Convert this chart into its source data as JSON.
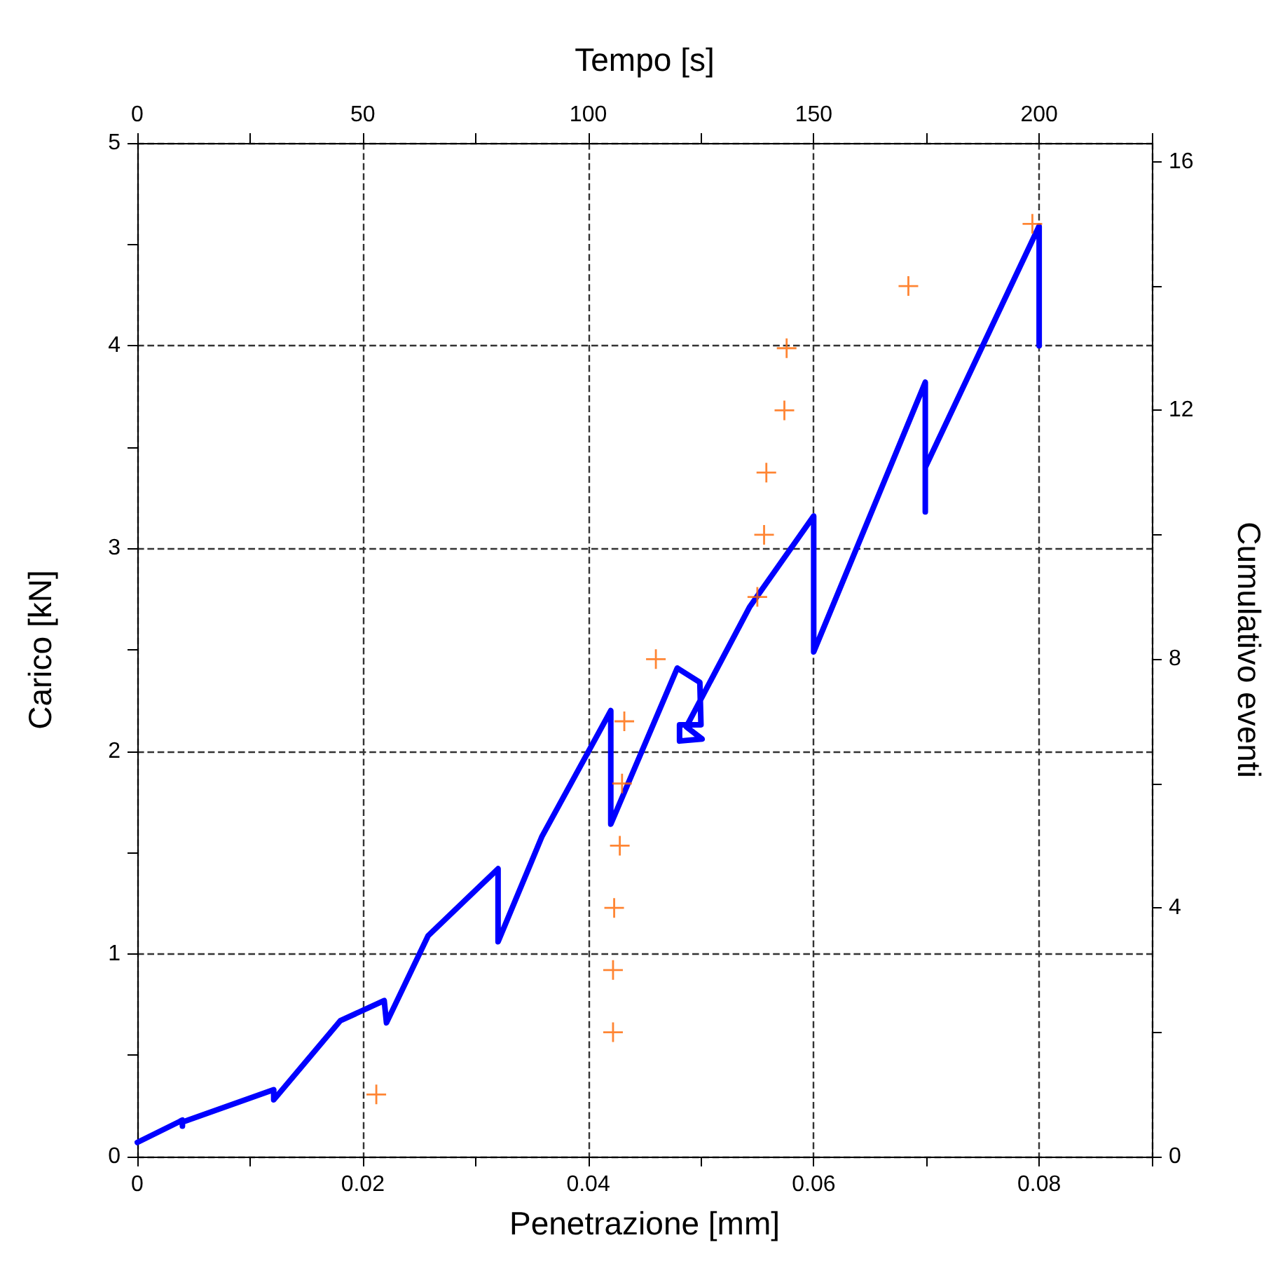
{
  "chart_data": {
    "type": "line",
    "xlabel": "Penetrazione [mm]",
    "ylabel": "Carico [kN]",
    "y2label": "Cumulativo eventi",
    "x2label": "Tempo [s]",
    "xlim": [
      0,
      0.09
    ],
    "xticks": [
      0,
      {
        "value": 0.01,
        "label": null
      },
      0.02,
      {
        "value": 0.03,
        "label": null
      },
      0.04,
      {
        "value": 0.05,
        "label": null
      },
      0.06,
      {
        "value": 0.07,
        "label": null
      },
      0.08,
      {
        "value": 0.09,
        "label": null
      }
    ],
    "x2lim": [
      0,
      225
    ],
    "x2ticks": [
      0,
      {
        "value": 25,
        "label": null
      },
      50,
      {
        "value": 75,
        "label": null
      },
      100,
      {
        "value": 125,
        "label": null
      },
      150,
      {
        "value": 175,
        "label": null
      },
      200,
      {
        "value": 225,
        "label": null
      }
    ],
    "ylim": [
      0,
      5
    ],
    "yticks": [
      0,
      {
        "value": 0.5,
        "label": null
      },
      1,
      {
        "value": 1.5,
        "label": null
      },
      2,
      {
        "value": 2.5,
        "label": null
      },
      3,
      {
        "value": 3.5,
        "label": null
      },
      4,
      {
        "value": 4.5,
        "label": null
      },
      5
    ],
    "y2lim": [
      0,
      16.3
    ],
    "y2ticks": [
      0,
      {
        "value": 2,
        "label": null
      },
      4,
      {
        "value": 6,
        "label": null
      },
      8,
      {
        "value": 10,
        "label": null
      },
      12,
      {
        "value": 14,
        "label": null
      },
      16
    ],
    "grid": true,
    "series": [
      {
        "type": "line",
        "color": "#0000ff",
        "marker": "none",
        "line_style": "solid",
        "x": [
          0,
          0.004,
          0.004,
          0.004,
          0.0121,
          0.0121,
          0.018,
          0.0219,
          0.0221,
          0.0258,
          0.032,
          0.032,
          0.0359,
          0.042,
          0.042,
          0.0479,
          0.0499,
          0.05,
          0.0481,
          0.0481,
          0.0501,
          0.0487,
          0.0543,
          0.06,
          0.06,
          0.0699,
          0.0699,
          0.0699,
          0.08,
          0.08
        ],
        "values": [
          0.07,
          0.18,
          0.15,
          0.17,
          0.33,
          0.28,
          0.67,
          0.77,
          0.66,
          1.09,
          1.42,
          1.06,
          1.58,
          2.2,
          1.64,
          2.41,
          2.34,
          2.13,
          2.13,
          2.05,
          2.06,
          2.12,
          2.71,
          3.16,
          2.49,
          3.82,
          3.18,
          3.4,
          4.59,
          4.0
        ]
      },
      {
        "type": "scatter",
        "color": "#ff6600",
        "marker": "cross",
        "axis": "y2",
        "x": [
          0.0212,
          0.0422,
          0.0422,
          0.0423,
          0.0428,
          0.043,
          0.0432,
          0.046,
          0.055,
          0.0556,
          0.0558,
          0.0574,
          0.0576,
          0.0684,
          0.0794
        ],
        "values": [
          1,
          2,
          3,
          4,
          5,
          6,
          7,
          8,
          9,
          10,
          11,
          12,
          13,
          14,
          15
        ]
      }
    ]
  }
}
